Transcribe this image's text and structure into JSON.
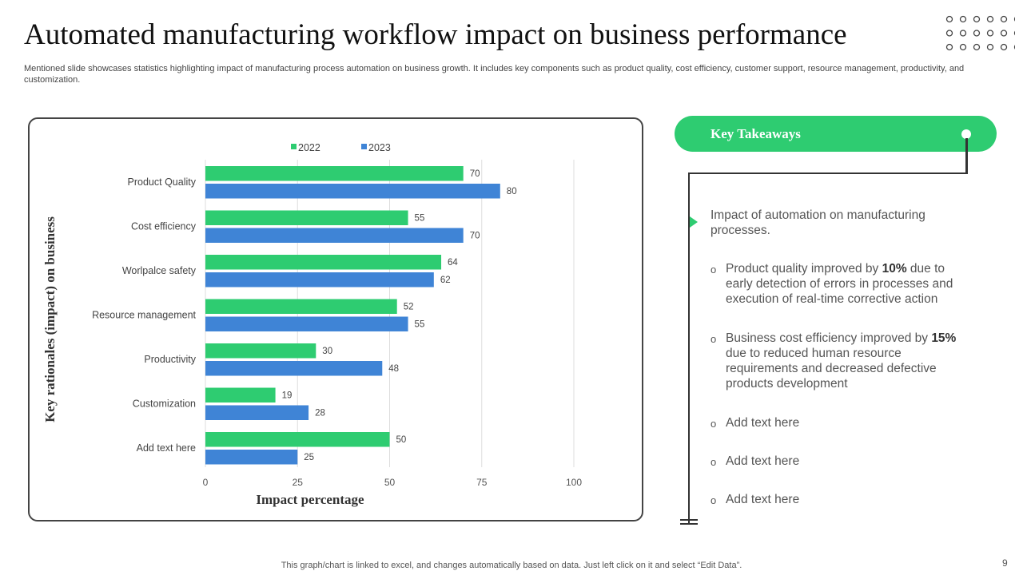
{
  "title": "Automated manufacturing workflow impact on business performance",
  "subtitle": "Mentioned slide showcases statistics highlighting impact of manufacturing process automation on business growth. It includes key components such as product quality, cost efficiency, customer support, resource management, productivity, and customization.",
  "chart_data": {
    "type": "bar",
    "orientation": "horizontal",
    "categories": [
      "Product Quality",
      "Cost efficiency",
      "Worlpalce safety",
      "Resource management",
      "Productivity",
      "Customization",
      "Add text here"
    ],
    "series": [
      {
        "name": "2022",
        "color": "#2ECC71",
        "values": [
          70,
          55,
          64,
          52,
          30,
          19,
          50
        ]
      },
      {
        "name": "2023",
        "color": "#3F84D6",
        "values": [
          80,
          70,
          62,
          55,
          48,
          28,
          25
        ]
      }
    ],
    "xlabel": "Impact percentage",
    "ylabel": "Key rationales (impact) on business",
    "xlim": [
      0,
      100
    ],
    "xticks": [
      0,
      25,
      50,
      75,
      100
    ],
    "grid": true,
    "legend": "top"
  },
  "takeaways": {
    "heading": "Key Takeaways",
    "intro": "Impact of automation on manufacturing processes.",
    "items": [
      {
        "pre": "Product quality improved by ",
        "bold": "10%",
        "post": " due to early detection of errors in processes and execution of real-time corrective action"
      },
      {
        "pre": "Business cost efficiency improved by ",
        "bold": "15%",
        "post": " due to reduced human resource requirements and decreased defective products development"
      },
      {
        "pre": "Add text here",
        "bold": "",
        "post": ""
      },
      {
        "pre": "Add text here",
        "bold": "",
        "post": ""
      },
      {
        "pre": "Add text here",
        "bold": "",
        "post": ""
      }
    ]
  },
  "footer": "This graph/chart is linked to excel, and changes automatically based on data. Just left click on it and select “Edit Data”.",
  "page_number": "9"
}
